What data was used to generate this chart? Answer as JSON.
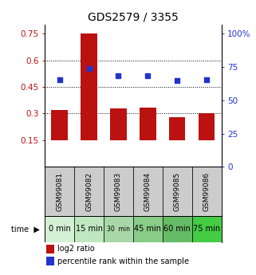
{
  "title": "GDS2579 / 3355",
  "samples": [
    "GSM99081",
    "GSM99082",
    "GSM99083",
    "GSM99084",
    "GSM99085",
    "GSM99086"
  ],
  "time_labels": [
    "0 min",
    "15 min",
    "30  min",
    "45 min",
    "60 min",
    "75 min"
  ],
  "log2_ratio": [
    0.32,
    0.75,
    0.33,
    0.335,
    0.28,
    0.3
  ],
  "percentile_rank": [
    65.5,
    73.5,
    68.5,
    68.5,
    65.0,
    65.5
  ],
  "bar_color": "#bb1111",
  "dot_color": "#2233cc",
  "left_yticks": [
    0.15,
    0.3,
    0.45,
    0.6,
    0.75
  ],
  "right_yticks": [
    0,
    25,
    50,
    75,
    100
  ],
  "ylim_left": [
    0.0,
    0.8
  ],
  "ylim_right": [
    0,
    106.67
  ],
  "grid_lines": [
    0.3,
    0.45,
    0.6
  ],
  "legend_bar_label": "log2 ratio",
  "legend_dot_label": "percentile rank within the sample",
  "title_fontsize": 10,
  "tick_fontsize": 7.5,
  "sample_label_fontsize": 6.5,
  "time_label_fontsize": 7.0,
  "background_color": "#ffffff",
  "sample_bg_color": "#cccccc",
  "time_colors": [
    "#d4f0d4",
    "#c0e8c0",
    "#a8d8a8",
    "#88cc88",
    "#66bb66",
    "#44cc44"
  ]
}
